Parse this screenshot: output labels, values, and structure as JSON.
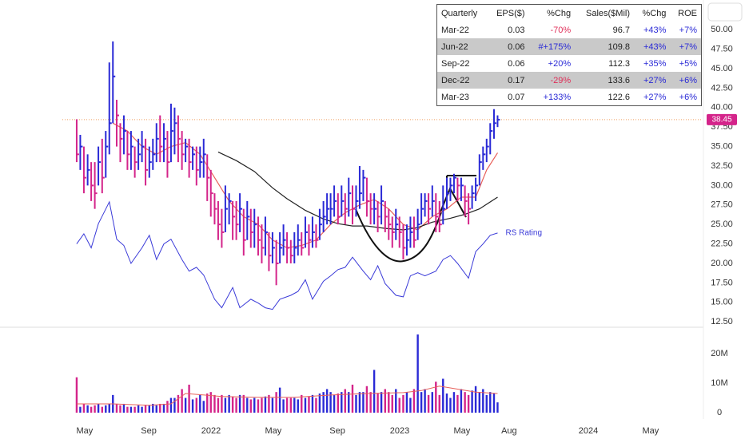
{
  "chart_data": {
    "type": "ohlc",
    "x": [
      2021.288,
      2021.307,
      2021.326,
      2021.346,
      2021.365,
      2021.384,
      2021.403,
      2021.423,
      2021.442,
      2021.461,
      2021.48,
      2021.5,
      2021.519,
      2021.538,
      2021.557,
      2021.576,
      2021.596,
      2021.615,
      2021.634,
      2021.653,
      2021.673,
      2021.692,
      2021.711,
      2021.73,
      2021.75,
      2021.769,
      2021.788,
      2021.807,
      2021.826,
      2021.846,
      2021.865,
      2021.884,
      2021.903,
      2021.923,
      2021.942,
      2021.961,
      2021.98,
      2021.999,
      2022.019,
      2022.038,
      2022.057,
      2022.076,
      2022.096,
      2022.115,
      2022.134,
      2022.153,
      2022.173,
      2022.192,
      2022.211,
      2022.23,
      2022.25,
      2022.269,
      2022.288,
      2022.307,
      2022.326,
      2022.346,
      2022.365,
      2022.384,
      2022.403,
      2022.423,
      2022.442,
      2022.461,
      2022.48,
      2022.5,
      2022.519,
      2022.538,
      2022.557,
      2022.576,
      2022.596,
      2022.615,
      2022.634,
      2022.653,
      2022.673,
      2022.692,
      2022.711,
      2022.73,
      2022.75,
      2022.769,
      2022.788,
      2022.807,
      2022.826,
      2022.846,
      2022.865,
      2022.884,
      2022.903,
      2022.923,
      2022.942,
      2022.961,
      2022.98,
      2022.999,
      2023.019,
      2023.038,
      2023.057,
      2023.076,
      2023.096,
      2023.115,
      2023.134,
      2023.153,
      2023.173,
      2023.192,
      2023.211,
      2023.23,
      2023.25,
      2023.269,
      2023.288,
      2023.307,
      2023.326,
      2023.346,
      2023.365,
      2023.384,
      2023.403,
      2023.423,
      2023.442,
      2023.461,
      2023.48,
      2023.5,
      2023.519
    ],
    "high": [
      38.5,
      36.5,
      35,
      34,
      33,
      33,
      35,
      36,
      37,
      45.8,
      48.5,
      41,
      38,
      39,
      37,
      37,
      35,
      36,
      37,
      36,
      35,
      36,
      38,
      39,
      38,
      37,
      40.5,
      40,
      39,
      37,
      36,
      36,
      35,
      35,
      35,
      36,
      34,
      32,
      29,
      28,
      27,
      30,
      29,
      28,
      28,
      29,
      27,
      28,
      27,
      27,
      26,
      25,
      26,
      24,
      24,
      23,
      24,
      25,
      24,
      23,
      24,
      25,
      24,
      26,
      25,
      26,
      25,
      27,
      28,
      29,
      29,
      30,
      29,
      30,
      29,
      31,
      30,
      30,
      32.5,
      32,
      31,
      29,
      29,
      28,
      30,
      28,
      27,
      26,
      27,
      26,
      25,
      25,
      26,
      26,
      27,
      29,
      29,
      29,
      30,
      29,
      28,
      30,
      31,
      31,
      31.5,
      31,
      31,
      30,
      29,
      30,
      31,
      34,
      35,
      36,
      38,
      39.8,
      39
    ],
    "low": [
      33,
      32,
      29,
      30,
      28,
      27,
      30,
      29,
      31,
      34,
      38,
      35,
      33,
      34,
      32,
      32,
      31,
      32,
      33,
      30,
      31,
      32,
      33,
      33,
      33,
      31,
      33,
      34,
      33,
      32,
      33,
      31,
      32,
      30,
      31,
      31,
      28,
      26,
      25,
      23,
      22,
      24,
      25,
      23,
      23,
      24,
      21,
      23,
      22,
      22,
      21,
      20,
      21,
      19,
      20,
      17.2,
      20,
      21,
      20,
      20,
      20,
      21,
      21,
      22,
      21,
      22,
      22,
      23,
      24,
      25,
      25,
      26,
      25,
      26,
      25,
      26,
      25,
      26,
      27,
      28,
      26,
      25,
      25,
      24,
      25,
      24,
      23,
      22,
      23,
      22,
      20.5,
      21,
      22,
      22,
      23,
      25,
      26,
      25,
      26,
      24,
      24,
      25,
      27,
      28,
      29,
      28,
      28,
      26,
      25,
      27,
      28,
      30,
      32,
      33,
      34,
      36,
      37.5
    ],
    "close": [
      34,
      35,
      31,
      32,
      30,
      29,
      33,
      31,
      35,
      38,
      44,
      39,
      36,
      37,
      34,
      35,
      33,
      34,
      35,
      32,
      33,
      34,
      36,
      35,
      36,
      33,
      37,
      38,
      36,
      34,
      35,
      33,
      34,
      32,
      33,
      34,
      31,
      29,
      27,
      25,
      24,
      27,
      28,
      26,
      25,
      27,
      23,
      26,
      24,
      25,
      23,
      22,
      24,
      21,
      22,
      20,
      22,
      23,
      22,
      21,
      22,
      23,
      22,
      24,
      23,
      24,
      23,
      25,
      26,
      27,
      27,
      28,
      26,
      28,
      27,
      29,
      27,
      28,
      29,
      31,
      28,
      27,
      27,
      26,
      28,
      26,
      25,
      24,
      25,
      24,
      22,
      23,
      24,
      23,
      25,
      27,
      28,
      27,
      28,
      26,
      25,
      27,
      29,
      30,
      31,
      30,
      30,
      28,
      27,
      29,
      30,
      33,
      34,
      35,
      37,
      38,
      38.45
    ],
    "up_color": "#2a2ad6",
    "down_color": "#d4248a",
    "last_line_color": "#f0a060",
    "lines": [
      {
        "color": "#e8605a",
        "x": [
          2021.48,
          2021.557,
          2021.634,
          2021.711,
          2021.788,
          2021.865,
          2021.942,
          2022.019,
          2022.096,
          2022.173,
          2022.25,
          2022.326,
          2022.403,
          2022.48,
          2022.557,
          2022.634,
          2022.711,
          2022.788,
          2022.865,
          2022.942,
          2023.019,
          2023.096,
          2023.173,
          2023.25,
          2023.326,
          2023.403,
          2023.461,
          2023.519
        ],
        "values": [
          38,
          37,
          35,
          34,
          35,
          35.5,
          34,
          31,
          28,
          26,
          25,
          23,
          22,
          22.3,
          23,
          25,
          26.5,
          27.5,
          28.2,
          27,
          25,
          24.3,
          26,
          27,
          28.5,
          28.5,
          32,
          34.2
        ]
      },
      {
        "color": "#222222",
        "x": [
          2022.038,
          2022.134,
          2022.23,
          2022.326,
          2022.403,
          2022.5,
          2022.596,
          2022.673,
          2022.75,
          2022.826,
          2022.923,
          2023.019,
          2023.096,
          2023.173,
          2023.269,
          2023.346,
          2023.423,
          2023.519
        ],
        "values": [
          34.3,
          33.2,
          31.8,
          29.7,
          28.3,
          26.8,
          25.7,
          25.1,
          24.8,
          24.8,
          24.5,
          24.3,
          24.6,
          25.3,
          25.8,
          26.3,
          27,
          28.5
        ]
      }
    ],
    "rs": {
      "name": "RS Rating",
      "color": "#3a3ad8",
      "x": [
        2021.288,
        2021.326,
        2021.365,
        2021.403,
        2021.461,
        2021.5,
        2021.538,
        2021.576,
        2021.634,
        2021.673,
        2021.711,
        2021.75,
        2021.788,
        2021.846,
        2021.884,
        2021.923,
        2021.961,
        2022.019,
        2022.057,
        2022.115,
        2022.153,
        2022.211,
        2022.25,
        2022.288,
        2022.326,
        2022.365,
        2022.423,
        2022.461,
        2022.5,
        2022.538,
        2022.596,
        2022.634,
        2022.673,
        2022.711,
        2022.75,
        2022.807,
        2022.846,
        2022.884,
        2022.923,
        2022.98,
        2023.019,
        2023.057,
        2023.096,
        2023.134,
        2023.192,
        2023.23,
        2023.269,
        2023.307,
        2023.365,
        2023.403,
        2023.442,
        2023.48,
        2023.519
      ],
      "values": [
        22.5,
        23.8,
        22,
        25.1,
        27.9,
        23.1,
        22.3,
        20,
        22,
        23.6,
        20.5,
        22.5,
        23.1,
        20.5,
        19,
        19.5,
        18.5,
        15.4,
        14.3,
        16.9,
        14.3,
        15.4,
        14.9,
        14.3,
        14.1,
        15.4,
        15.9,
        16.4,
        17.9,
        15.4,
        17.7,
        18.4,
        19.2,
        19.5,
        20.8,
        19,
        17.9,
        19.7,
        17.4,
        15.9,
        15.7,
        18.4,
        18.8,
        18.4,
        19,
        20.5,
        21,
        20,
        18.1,
        21.5,
        22.5,
        23.6,
        23.9
      ]
    },
    "volume": {
      "axis": "y2",
      "values": [
        12,
        2,
        3,
        2.5,
        2,
        2.5,
        3,
        2,
        2.5,
        3,
        6,
        3,
        2.5,
        3,
        2,
        2,
        2,
        2.5,
        2,
        2.5,
        2.5,
        3,
        2.5,
        3,
        3,
        4,
        5,
        5,
        6,
        8,
        5,
        9.5,
        4.5,
        5,
        6,
        4,
        6.5,
        7,
        6,
        5,
        6,
        5,
        6,
        5.5,
        5,
        6,
        6,
        5,
        4.5,
        5,
        4.5,
        5,
        5.5,
        6,
        5,
        7,
        8.5,
        4.5,
        5,
        5,
        5,
        4.5,
        6,
        5,
        5.5,
        6,
        5,
        6.5,
        7,
        8,
        7,
        6,
        6.5,
        7,
        8,
        7,
        9.5,
        6,
        7,
        7,
        9,
        7,
        14.5,
        6.5,
        7,
        8,
        7,
        6,
        8,
        5,
        6,
        7,
        5,
        8,
        26.5,
        7,
        8,
        6,
        7,
        10.5,
        6,
        11.5,
        6.5,
        5,
        7,
        6,
        8,
        7,
        6,
        7.5,
        9,
        7,
        8,
        6,
        7,
        6.5,
        3.5
      ]
    },
    "volume_ma": {
      "axis": "y2",
      "color": "#e8605a",
      "x": [
        2021.288,
        2021.48,
        2021.673,
        2021.788,
        2021.865,
        2022.057,
        2022.25,
        2022.442,
        2022.634,
        2022.826,
        2023.019,
        2023.115,
        2023.211,
        2023.307,
        2023.403,
        2023.519
      ],
      "values": [
        3,
        3,
        2.5,
        3,
        6.5,
        5.5,
        5.2,
        5.2,
        6,
        6.5,
        6.8,
        7.5,
        9,
        8,
        7,
        6.5
      ]
    },
    "xlim": [
      2021.212,
      2024.606
    ],
    "xticks": [
      {
        "value": 2021.33,
        "label": "May"
      },
      {
        "value": 2021.67,
        "label": "Sep"
      },
      2022,
      {
        "value": 2022.33,
        "label": "May"
      },
      {
        "value": 2022.67,
        "label": "Sep"
      },
      2023,
      {
        "value": 2023.33,
        "label": "May"
      },
      {
        "value": 2023.58,
        "label": "Aug"
      },
      2024,
      {
        "value": 2024.33,
        "label": "May"
      }
    ],
    "ylim": [
      11.8,
      53.3
    ],
    "yticks": [
      {
        "value": 12.5,
        "label": "12.50"
      },
      {
        "value": 15,
        "label": "15.00"
      },
      {
        "value": 17.5,
        "label": "17.50"
      },
      {
        "value": 20,
        "label": "20.00"
      },
      {
        "value": 22.5,
        "label": "22.50"
      },
      {
        "value": 25,
        "label": "25.00"
      },
      {
        "value": 27.5,
        "label": "27.50"
      },
      {
        "value": 30,
        "label": "30.00"
      },
      {
        "value": 32.5,
        "label": "32.50"
      },
      {
        "value": 35,
        "label": "35.00"
      },
      {
        "value": 37.5,
        "label": "37.50"
      },
      {
        "value": 40,
        "label": "40.00"
      },
      {
        "value": 42.5,
        "label": "42.50"
      },
      {
        "value": 45,
        "label": "45.00"
      },
      {
        "value": 47.5,
        "label": "47.50"
      },
      {
        "value": 50,
        "label": "50.00"
      }
    ],
    "y2lim": [
      -0.8,
      27.6
    ],
    "y2ticks": [
      0,
      {
        "value": 10,
        "label": "10M"
      },
      {
        "value": 20,
        "label": "20M"
      }
    ]
  },
  "table": {
    "header": [
      "Quarterly",
      "EPS($)",
      "%Chg",
      "Sales($Mil)",
      "%Chg",
      "ROE"
    ],
    "rows": [
      [
        "Mar-22",
        "0.03",
        "-70%",
        "96.7",
        "+43%",
        "+7%"
      ],
      [
        "Jun-22",
        "0.06",
        "#+175%",
        "109.8",
        "+43%",
        "+7%"
      ],
      [
        "Sep-22",
        "0.06",
        "+20%",
        "112.3",
        "+35%",
        "+5%"
      ],
      [
        "Dec-22",
        "0.17",
        "-29%",
        "133.6",
        "+27%",
        "+6%"
      ],
      [
        "Mar-23",
        "0.07",
        "+133%",
        "122.6",
        "+27%",
        "+6%"
      ]
    ]
  }
}
